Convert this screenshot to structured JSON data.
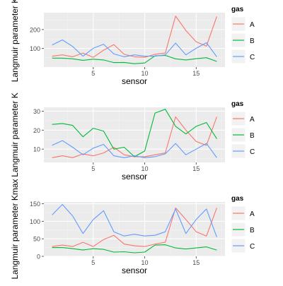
{
  "chart_data": [
    {
      "type": "line",
      "xlabel": "sensor",
      "ylabel": "Langmuir parameter K",
      "xlim": [
        0.2,
        17.8
      ],
      "ylim": [
        0,
        290
      ],
      "x_ticks": [
        5,
        10,
        15
      ],
      "y_ticks": [
        100,
        200
      ],
      "grid": true,
      "legend": {
        "title": "gas",
        "position": "right"
      },
      "x": [
        1,
        2,
        3,
        4,
        5,
        6,
        7,
        8,
        9,
        10,
        11,
        12,
        13,
        14,
        15,
        16,
        17
      ],
      "series": [
        {
          "name": "A",
          "color": "#F8766D",
          "values": [
            58,
            65,
            55,
            75,
            52,
            90,
            120,
            68,
            55,
            52,
            68,
            75,
            272,
            195,
            135,
            112,
            270
          ]
        },
        {
          "name": "B",
          "color": "#00BA38",
          "values": [
            48,
            48,
            44,
            36,
            42,
            38,
            24,
            25,
            18,
            22,
            60,
            62,
            44,
            38,
            45,
            50,
            30
          ]
        },
        {
          "name": "C",
          "color": "#619CFF",
          "values": [
            118,
            145,
            110,
            58,
            100,
            122,
            70,
            55,
            65,
            58,
            58,
            65,
            128,
            65,
            100,
            130,
            55
          ]
        }
      ]
    },
    {
      "type": "line",
      "xlabel": "sensor",
      "ylabel": "Langmuir parameter K",
      "xlim": [
        0.2,
        17.8
      ],
      "ylim": [
        3,
        32
      ],
      "x_ticks": [
        5,
        10,
        15
      ],
      "y_ticks": [
        10,
        20,
        30
      ],
      "grid": true,
      "legend": {
        "title": "gas",
        "position": "right"
      },
      "x": [
        1,
        2,
        3,
        4,
        5,
        6,
        7,
        8,
        9,
        10,
        11,
        12,
        13,
        14,
        15,
        16,
        17
      ],
      "series": [
        {
          "name": "A",
          "color": "#F8766D",
          "values": [
            5.5,
            6.5,
            5.5,
            7.5,
            6.5,
            8,
            11,
            7,
            6,
            6,
            7,
            8,
            27,
            20,
            14,
            12,
            27
          ]
        },
        {
          "name": "B",
          "color": "#00BA38",
          "values": [
            23,
            23.5,
            22.5,
            16.5,
            21,
            19.5,
            10,
            11,
            6,
            9,
            29,
            31,
            22,
            18,
            22,
            24,
            15.5
          ]
        },
        {
          "name": "C",
          "color": "#619CFF",
          "values": [
            12,
            14.5,
            11,
            7,
            10.5,
            12.5,
            6.5,
            5.5,
            6.5,
            5.5,
            6,
            7.5,
            13,
            7,
            10,
            13,
            5.5
          ]
        }
      ]
    },
    {
      "type": "line",
      "xlabel": "sensor",
      "ylabel": "Langmuir parameter Kmax",
      "xlim": [
        0.2,
        17.8
      ],
      "ylim": [
        0,
        155
      ],
      "x_ticks": [
        5,
        10,
        15
      ],
      "y_ticks": [
        0,
        50,
        100,
        150
      ],
      "grid": true,
      "legend": {
        "title": "gas",
        "position": "right"
      },
      "x": [
        1,
        2,
        3,
        4,
        5,
        6,
        7,
        8,
        9,
        10,
        11,
        12,
        13,
        14,
        15,
        16,
        17
      ],
      "series": [
        {
          "name": "A",
          "color": "#F8766D",
          "values": [
            28,
            32,
            28,
            40,
            28,
            48,
            60,
            35,
            30,
            28,
            35,
            40,
            138,
            105,
            70,
            58,
            138
          ]
        },
        {
          "name": "B",
          "color": "#00BA38",
          "values": [
            25,
            25,
            22,
            18,
            22,
            20,
            12,
            13,
            10,
            12,
            32,
            33,
            24,
            21,
            24,
            27,
            18
          ]
        },
        {
          "name": "C",
          "color": "#619CFF",
          "values": [
            118,
            148,
            115,
            65,
            105,
            130,
            70,
            58,
            63,
            58,
            60,
            70,
            135,
            65,
            105,
            135,
            55
          ]
        }
      ]
    }
  ]
}
